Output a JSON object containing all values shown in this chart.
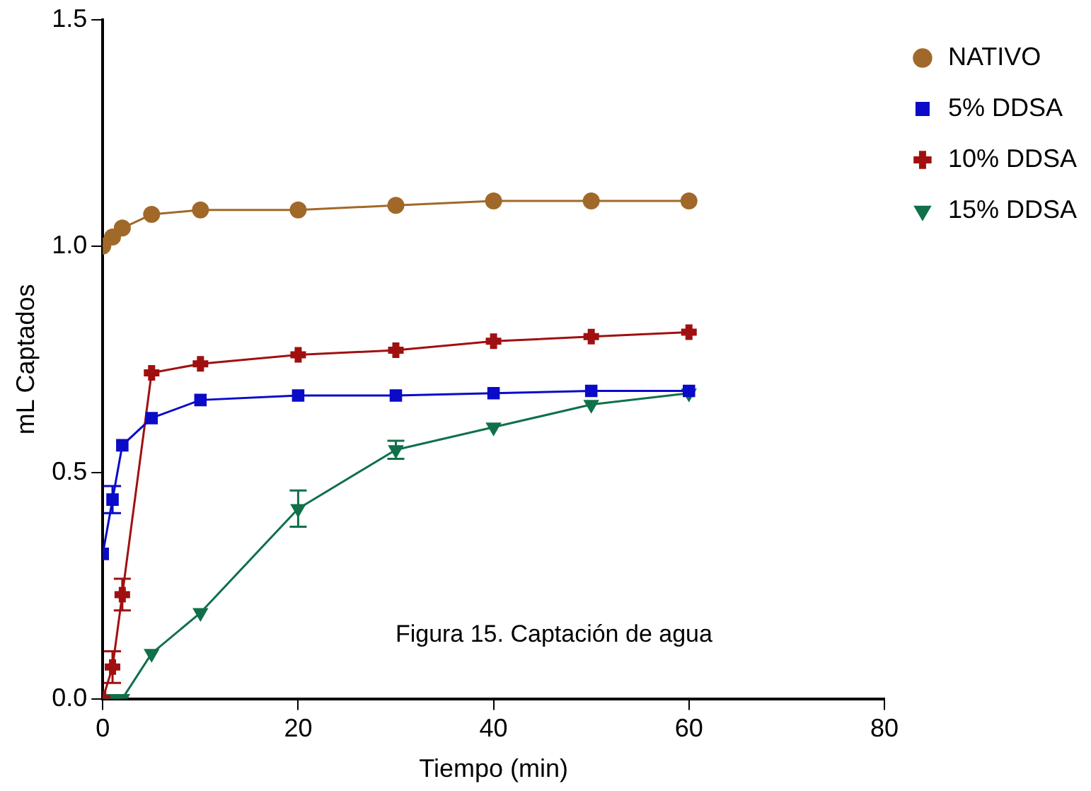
{
  "chart_data": {
    "type": "line",
    "xlabel": "Tiempo (min)",
    "ylabel": "mL Captados",
    "annotations": [
      "Figura 15. Captación de agua"
    ],
    "x": [
      0,
      1,
      2,
      5,
      10,
      20,
      30,
      40,
      50,
      60
    ],
    "xlim": [
      0,
      80
    ],
    "xticks": [
      0,
      20,
      40,
      60,
      80
    ],
    "ylim": [
      0,
      1.5
    ],
    "yticks": [
      {
        "value": 0,
        "label": "0.0"
      },
      0.5,
      {
        "value": 1,
        "label": "1.0"
      },
      1.5
    ],
    "grid": false,
    "legend": "right",
    "line_style": "solid",
    "series": [
      {
        "name": "NATIVO",
        "color": "#a0692a",
        "marker": "circle",
        "values": [
          1.0,
          1.02,
          1.04,
          1.07,
          1.08,
          1.08,
          1.09,
          1.1,
          1.1,
          1.1
        ]
      },
      {
        "name": "5% DDSA",
        "color": "#0a0ac8",
        "marker": "square",
        "values": [
          0.32,
          0.44,
          0.56,
          0.62,
          0.66,
          0.67,
          0.67,
          0.675,
          0.68,
          0.68
        ],
        "errors": [
          null,
          0.03,
          null,
          null,
          null,
          null,
          null,
          null,
          null,
          null
        ]
      },
      {
        "name": "10% DDSA",
        "color": "#a01010",
        "marker": "cross",
        "values": [
          0.0,
          0.07,
          0.23,
          0.72,
          0.74,
          0.76,
          0.77,
          0.79,
          0.8,
          0.81
        ],
        "errors": [
          null,
          0.035,
          0.035,
          null,
          null,
          null,
          null,
          null,
          null,
          null
        ]
      },
      {
        "name": "15% DDSA",
        "color": "#10704a",
        "marker": "triangle",
        "values": [
          0,
          0,
          0,
          0.1,
          0.19,
          0.42,
          0.55,
          0.6,
          0.65,
          0.675
        ],
        "errors": [
          null,
          null,
          null,
          null,
          null,
          0.04,
          0.02,
          null,
          null,
          null
        ]
      }
    ]
  }
}
